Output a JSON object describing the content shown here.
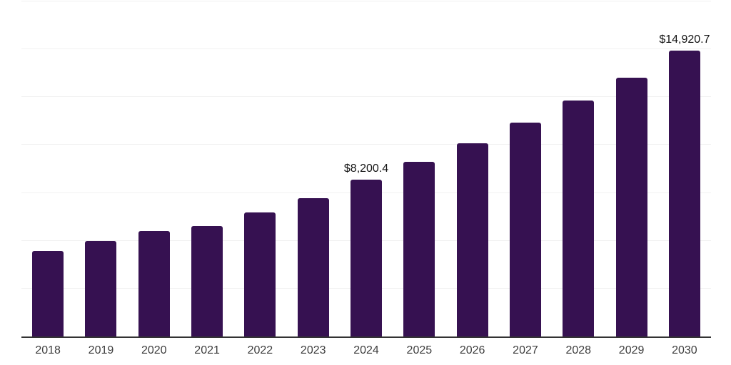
{
  "chart_data": {
    "type": "bar",
    "title": "",
    "xlabel": "",
    "ylabel": "",
    "categories": [
      "2018",
      "2019",
      "2020",
      "2021",
      "2022",
      "2023",
      "2024",
      "2025",
      "2026",
      "2027",
      "2028",
      "2029",
      "2030"
    ],
    "values": [
      4480,
      5000,
      5520,
      5780,
      6480,
      7220,
      8200.4,
      9110,
      10110,
      11180,
      12330,
      13520,
      14920.7
    ],
    "data_labels": [
      null,
      null,
      null,
      null,
      null,
      null,
      "$8,200.4",
      null,
      null,
      null,
      null,
      null,
      "$14,920.7"
    ],
    "ylim": [
      0,
      17500
    ],
    "gridline_interval": 2500,
    "grid": true,
    "y_axis_tick_labels_visible": false,
    "legend_position": "none",
    "currency_unit": "USD"
  },
  "colors": {
    "bar": "#361151",
    "gridline": "#f1f1f1",
    "axis_line": "#333333",
    "tick_label": "#3d3d3d",
    "data_label": "#141414",
    "background": "#ffffff"
  }
}
